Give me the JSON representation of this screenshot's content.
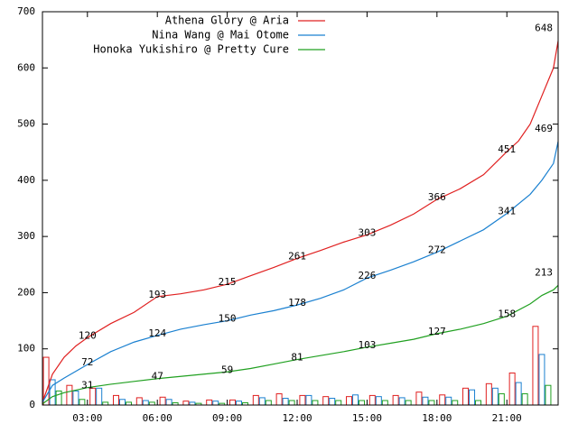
{
  "chart_data": {
    "type": "line",
    "xlim": [
      1.07,
      23.2
    ],
    "ylim": [
      0,
      700
    ],
    "yticks": [
      0,
      100,
      200,
      300,
      400,
      500,
      600,
      700
    ],
    "xticks": [
      {
        "value": 3,
        "label": "03:00"
      },
      {
        "value": 6,
        "label": "06:00"
      },
      {
        "value": 9,
        "label": "09:00"
      },
      {
        "value": 12,
        "label": "12:00"
      },
      {
        "value": 15,
        "label": "15:00"
      },
      {
        "value": 18,
        "label": "18:00"
      },
      {
        "value": 21,
        "label": "21:00"
      }
    ],
    "legend": "top-left",
    "bar_x": [
      1.5,
      2.5,
      3.5,
      4.5,
      5.5,
      6.5,
      7.5,
      8.5,
      9.5,
      10.5,
      11.5,
      12.5,
      13.5,
      14.5,
      15.5,
      16.5,
      17.5,
      18.5,
      19.5,
      20.5,
      21.5,
      22.5
    ],
    "series": [
      {
        "name": "Athena Glory @ Aria",
        "color": "#e02020",
        "x": [
          1.07,
          1.5,
          2,
          2.5,
          3,
          4,
          5,
          6,
          7,
          8,
          9,
          10,
          11,
          12,
          13,
          14,
          15,
          16,
          17,
          18,
          19,
          20,
          21,
          21.5,
          22,
          22.5,
          23,
          23.2
        ],
        "values": [
          5,
          55,
          85,
          105,
          120,
          145,
          165,
          193,
          198,
          205,
          215,
          230,
          245,
          261,
          275,
          290,
          303,
          320,
          340,
          366,
          385,
          410,
          451,
          470,
          500,
          550,
          600,
          648
        ],
        "value_labels": [
          null,
          null,
          null,
          null,
          "120",
          null,
          null,
          "193",
          null,
          null,
          "215",
          null,
          null,
          "261",
          null,
          null,
          "303",
          null,
          null,
          "366",
          null,
          null,
          "451",
          null,
          null,
          null,
          null,
          "648"
        ],
        "hourly": [
          85,
          35,
          30,
          17,
          13,
          14,
          7,
          9,
          9,
          17,
          20,
          17,
          15,
          15,
          17,
          17,
          23,
          18,
          30,
          38,
          57,
          140
        ]
      },
      {
        "name": "Nina Wang @ Mai Otome",
        "color": "#1a80d0",
        "x": [
          1.07,
          1.5,
          2,
          3,
          4,
          5,
          6,
          7,
          8,
          9,
          10,
          11,
          12,
          13,
          14,
          15,
          16,
          17,
          18,
          19,
          20,
          21,
          22,
          22.5,
          23,
          23.2
        ],
        "values": [
          5,
          35,
          48,
          72,
          95,
          112,
          124,
          135,
          143,
          150,
          160,
          168,
          178,
          190,
          205,
          226,
          240,
          255,
          272,
          292,
          312,
          341,
          375,
          400,
          430,
          469
        ],
        "value_labels": [
          null,
          null,
          null,
          "72",
          null,
          null,
          "124",
          null,
          null,
          "150",
          null,
          null,
          "178",
          null,
          null,
          "226",
          null,
          null,
          "272",
          null,
          null,
          "341",
          null,
          null,
          null,
          "469"
        ],
        "hourly": [
          45,
          25,
          30,
          10,
          8,
          10,
          5,
          7,
          7,
          13,
          12,
          17,
          12,
          18,
          15,
          13,
          14,
          14,
          27,
          30,
          40,
          90
        ]
      },
      {
        "name": "Honoka Yukishiro @ Pretty Cure",
        "color": "#20a020",
        "x": [
          1.07,
          1.5,
          2,
          3,
          4,
          5,
          6,
          7,
          8,
          9,
          10,
          11,
          12,
          13,
          14,
          15,
          16,
          17,
          18,
          19,
          20,
          21,
          22,
          22.5,
          23,
          23.2
        ],
        "values": [
          2,
          15,
          22,
          31,
          37,
          42,
          47,
          51,
          55,
          59,
          65,
          73,
          81,
          88,
          95,
          103,
          110,
          117,
          127,
          135,
          145,
          158,
          180,
          195,
          205,
          213
        ],
        "value_labels": [
          null,
          null,
          null,
          "31",
          null,
          null,
          "47",
          null,
          null,
          "59",
          null,
          null,
          "81",
          null,
          null,
          "103",
          null,
          null,
          "127",
          null,
          null,
          "158",
          null,
          null,
          null,
          "213"
        ],
        "hourly": [
          25,
          10,
          5,
          5,
          5,
          4,
          3,
          3,
          4,
          8,
          8,
          8,
          8,
          8,
          8,
          8,
          8,
          8,
          8,
          20,
          20,
          35
        ]
      }
    ]
  }
}
